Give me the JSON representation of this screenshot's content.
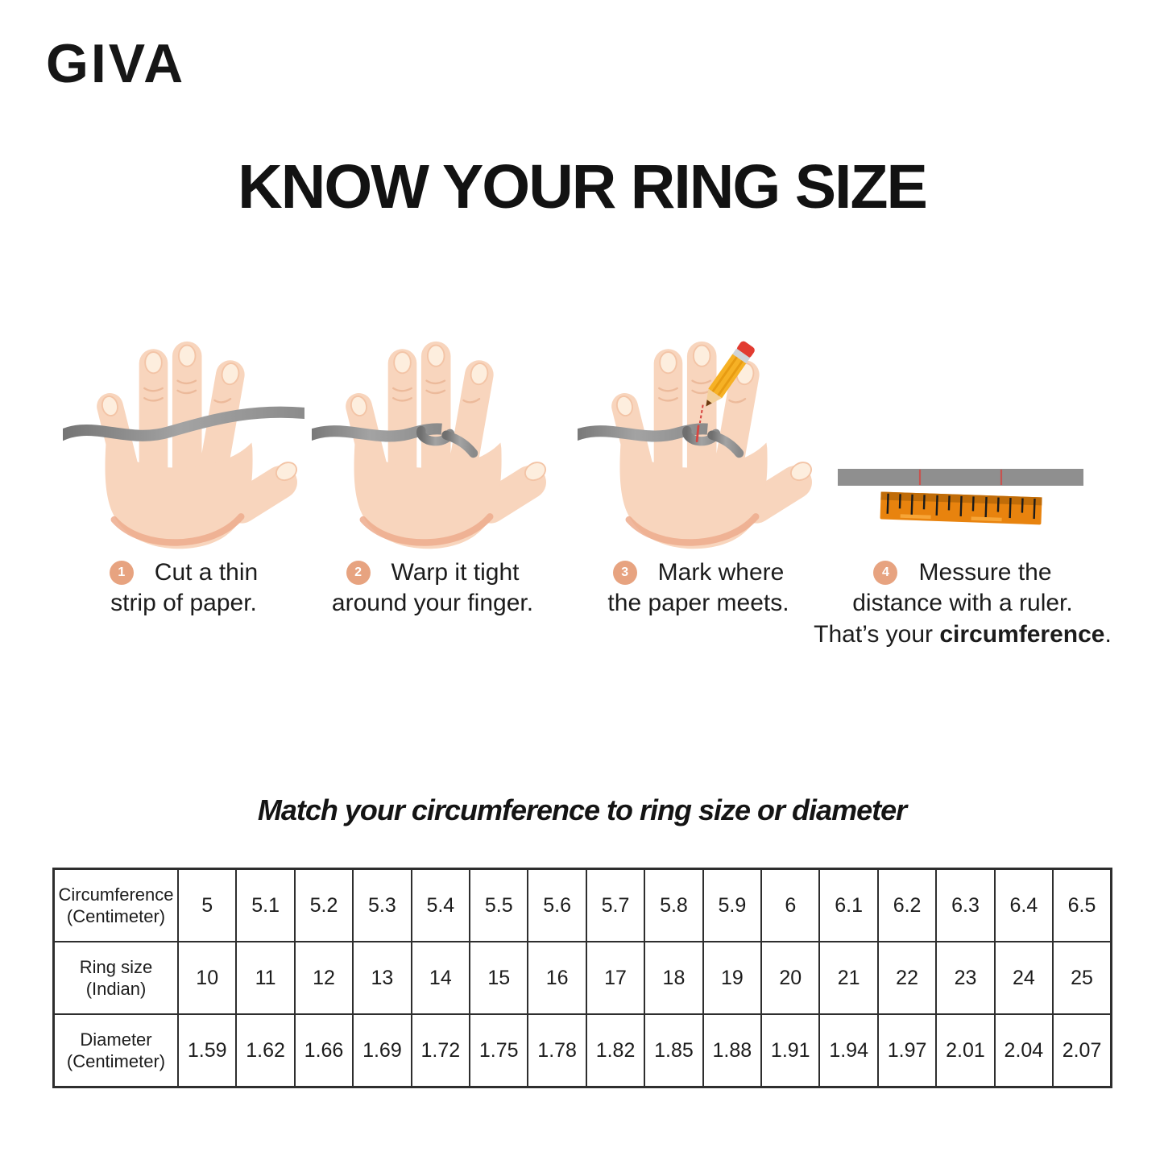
{
  "brand": {
    "logo_text": "GIVA"
  },
  "title": "KNOW YOUR RING SIZE",
  "subtitle": "Match your circumference to ring size or diameter",
  "steps": [
    {
      "num": "1",
      "icon": "hand-with-paper-strip-icon",
      "line1": "Cut a thin",
      "line2": "strip of paper."
    },
    {
      "num": "2",
      "icon": "hand-strip-wrapped-finger-icon",
      "line1": "Warp it tight",
      "line2": "around your finger."
    },
    {
      "num": "3",
      "icon": "hand-pencil-mark-icon",
      "line1": "Mark where",
      "line2": "the paper meets."
    },
    {
      "num": "4",
      "icon": "paper-strip-and-ruler-icon",
      "line1": "Messure the",
      "line2": "distance with a ruler.",
      "note_prefix": "That’s your ",
      "note_bold": "circumference",
      "note_suffix": "."
    }
  ],
  "table": {
    "rows": [
      {
        "header": "Circumference\n(Centimeter)",
        "values": [
          "5",
          "5.1",
          "5.2",
          "5.3",
          "5.4",
          "5.5",
          "5.6",
          "5.7",
          "5.8",
          "5.9",
          "6",
          "6.1",
          "6.2",
          "6.3",
          "6.4",
          "6.5"
        ]
      },
      {
        "header": "Ring size\n(Indian)",
        "values": [
          "10",
          "11",
          "12",
          "13",
          "14",
          "15",
          "16",
          "17",
          "18",
          "19",
          "20",
          "21",
          "22",
          "23",
          "24",
          "25"
        ]
      },
      {
        "header": "Diameter\n(Centimeter)",
        "values": [
          "1.59",
          "1.62",
          "1.66",
          "1.69",
          "1.72",
          "1.75",
          "1.78",
          "1.82",
          "1.85",
          "1.88",
          "1.91",
          "1.94",
          "1.97",
          "2.01",
          "2.04",
          "2.07"
        ]
      }
    ]
  },
  "colors": {
    "ink": "#1c1c1c",
    "badge": "#e7a380",
    "skin": "#f8d5bd",
    "skin_shadow": "#edac8d",
    "strip": "#8f8f8f",
    "ruler": "#e8830e",
    "ruler_dark": "#c06c08",
    "red": "#d64541",
    "table_border": "#2e2e2e"
  }
}
